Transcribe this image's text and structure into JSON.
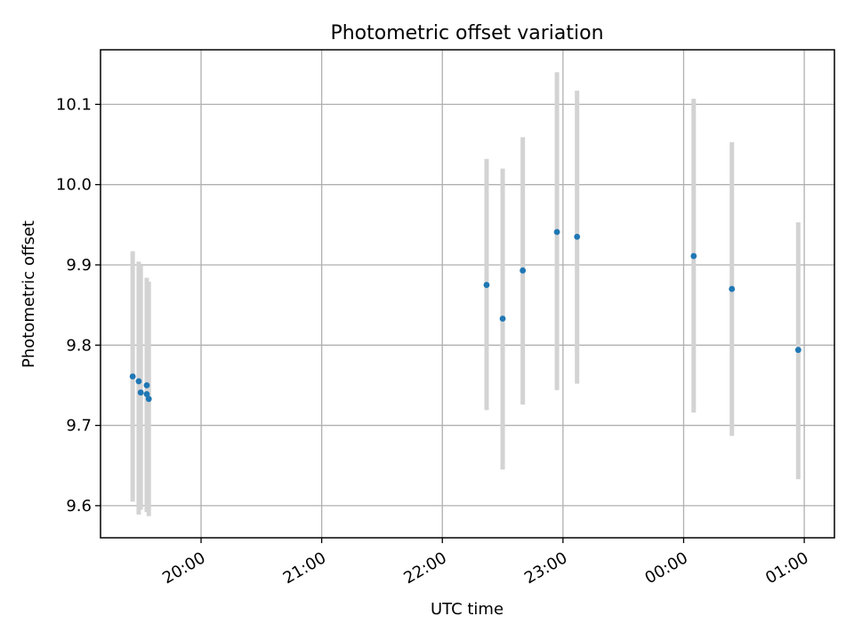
{
  "chart_data": {
    "type": "scatter",
    "title": "Photometric offset variation",
    "xlabel": "UTC time",
    "ylabel": "Photometric offset",
    "x_axis_type": "time",
    "grid": true,
    "xlim": [
      "19:10",
      "01:15"
    ],
    "ylim": [
      9.56,
      10.168
    ],
    "x_ticks": [
      "20:00",
      "21:00",
      "22:00",
      "23:00",
      "00:00",
      "01:00"
    ],
    "y_ticks": [
      "9.6",
      "9.7",
      "9.8",
      "9.9",
      "10.0",
      "10.1"
    ],
    "points": [
      {
        "x": "19:26",
        "y": 9.761,
        "err_low": 9.605,
        "err_high": 9.917
      },
      {
        "x": "19:29",
        "y": 9.755,
        "err_low": 9.589,
        "err_high": 9.904
      },
      {
        "x": "19:30",
        "y": 9.741,
        "err_low": 9.595,
        "err_high": 9.899
      },
      {
        "x": "19:33",
        "y": 9.75,
        "err_low": 9.592,
        "err_high": 9.884
      },
      {
        "x": "19:33",
        "y": 9.739,
        "err_low": 9.608,
        "err_high": 9.88
      },
      {
        "x": "19:34",
        "y": 9.733,
        "err_low": 9.587,
        "err_high": 9.879
      },
      {
        "x": "22:22",
        "y": 9.875,
        "err_low": 9.719,
        "err_high": 10.032
      },
      {
        "x": "22:30",
        "y": 9.833,
        "err_low": 9.645,
        "err_high": 10.02
      },
      {
        "x": "22:40",
        "y": 9.893,
        "err_low": 9.726,
        "err_high": 10.059
      },
      {
        "x": "22:57",
        "y": 9.941,
        "err_low": 9.744,
        "err_high": 10.14
      },
      {
        "x": "23:07",
        "y": 9.935,
        "err_low": 9.752,
        "err_high": 10.117
      },
      {
        "x": "00:05",
        "y": 9.911,
        "err_low": 9.716,
        "err_high": 10.107
      },
      {
        "x": "00:24",
        "y": 9.87,
        "err_low": 9.687,
        "err_high": 10.053
      },
      {
        "x": "00:57",
        "y": 9.794,
        "err_low": 9.633,
        "err_high": 9.953
      }
    ],
    "colors": {
      "point": "#1f77b4",
      "errorbar": "#d3d3d3",
      "grid": "#b0b0b0",
      "axes": "#000000"
    }
  }
}
